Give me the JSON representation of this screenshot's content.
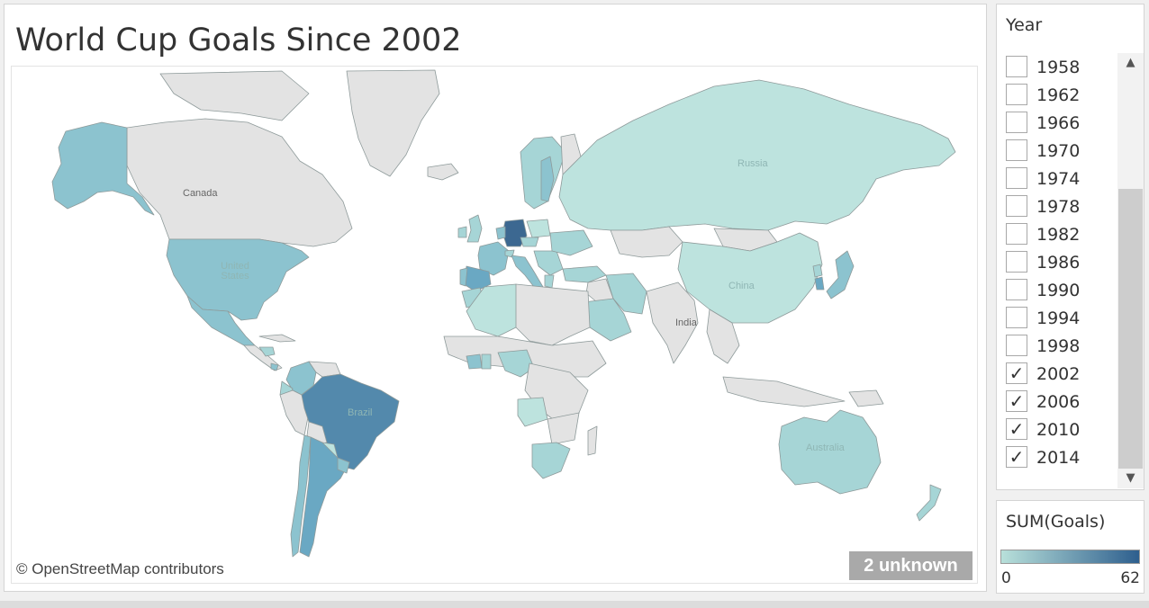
{
  "title": "World Cup Goals Since 2002",
  "map": {
    "copyright": "© OpenStreetMap contributors",
    "unknown_badge": "2 unknown",
    "labels": {
      "canada": "Canada",
      "russia": "Russia",
      "united_states": "United States",
      "china": "China",
      "india": "India",
      "brazil": "Brazil",
      "australia": "Australia"
    }
  },
  "year_filter": {
    "title": "Year",
    "items": [
      {
        "year": "1958",
        "checked": false
      },
      {
        "year": "1962",
        "checked": false
      },
      {
        "year": "1966",
        "checked": false
      },
      {
        "year": "1970",
        "checked": false
      },
      {
        "year": "1974",
        "checked": false
      },
      {
        "year": "1978",
        "checked": false
      },
      {
        "year": "1982",
        "checked": false
      },
      {
        "year": "1986",
        "checked": false
      },
      {
        "year": "1990",
        "checked": false
      },
      {
        "year": "1994",
        "checked": false
      },
      {
        "year": "1998",
        "checked": false
      },
      {
        "year": "2002",
        "checked": true
      },
      {
        "year": "2006",
        "checked": true
      },
      {
        "year": "2010",
        "checked": true
      },
      {
        "year": "2014",
        "checked": true
      }
    ]
  },
  "legend": {
    "title": "SUM(Goals)",
    "min": "0",
    "max": "62",
    "color_low": "#b8e0da",
    "color_high": "#2e5f8e"
  },
  "colors": {
    "unplayed": "#e3e3e3",
    "very_light": "#bde3de",
    "light": "#a6d5d6",
    "mid": "#8cc3cf",
    "mid_dark": "#6aa8c3",
    "dark": "#5389ac",
    "darkest": "#3c6891"
  }
}
